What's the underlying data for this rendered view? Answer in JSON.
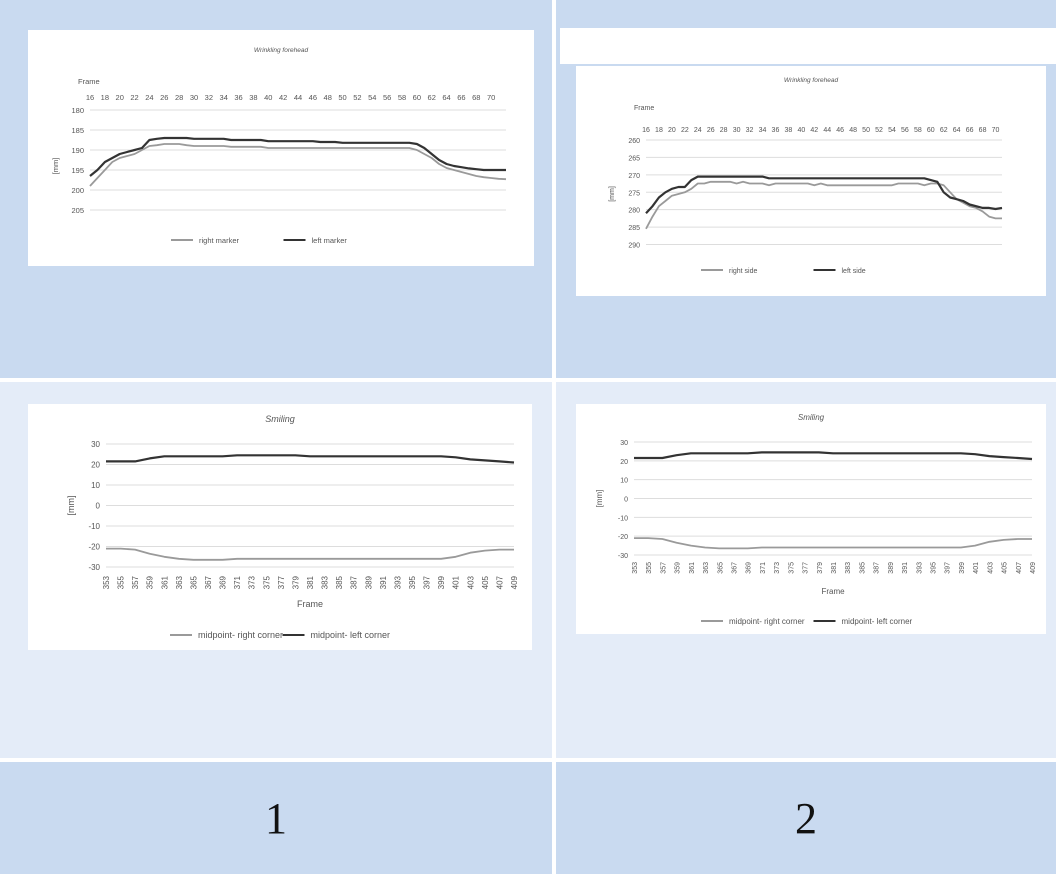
{
  "labels": {
    "left": "1",
    "right": "2"
  },
  "chart_data": [
    {
      "id": "p1",
      "type": "line",
      "title": "Wrinkling forehead",
      "xlabel": "Frame",
      "ylabel": "[mm]",
      "x_ticks": [
        "16",
        "18",
        "20",
        "22",
        "24",
        "26",
        "28",
        "30",
        "32",
        "34",
        "36",
        "38",
        "40",
        "42",
        "44",
        "46",
        "48",
        "50",
        "52",
        "54",
        "56",
        "58",
        "60",
        "62",
        "64",
        "66",
        "68",
        "70"
      ],
      "y_ticks": [
        180,
        185,
        190,
        195,
        200,
        205
      ],
      "ylim": [
        180,
        208
      ],
      "y_reversed": true,
      "x_axis_position": "top",
      "legend": "bottom",
      "series": [
        {
          "name": "right marker",
          "color": "#9a9a9a",
          "x": [
            16,
            17,
            18,
            19,
            20,
            21,
            22,
            23,
            24,
            25,
            26,
            27,
            28,
            29,
            30,
            31,
            32,
            33,
            34,
            35,
            36,
            37,
            38,
            39,
            40,
            41,
            42,
            43,
            44,
            45,
            46,
            47,
            48,
            49,
            50,
            51,
            52,
            53,
            54,
            55,
            56,
            57,
            58,
            59,
            60,
            61,
            62,
            63,
            64,
            65,
            66,
            67,
            68,
            69,
            70,
            71,
            72
          ],
          "y": [
            199,
            197,
            195,
            193,
            192,
            191.5,
            191,
            190,
            189,
            188.8,
            188.5,
            188.5,
            188.5,
            188.8,
            189,
            189,
            189,
            189,
            189,
            189.2,
            189.2,
            189.2,
            189.2,
            189.2,
            189.5,
            189.5,
            189.5,
            189.5,
            189.5,
            189.5,
            189.5,
            189.5,
            189.5,
            189.5,
            189.5,
            189.5,
            189.5,
            189.5,
            189.5,
            189.5,
            189.5,
            189.5,
            189.5,
            189.5,
            190,
            191,
            192,
            193.5,
            194.5,
            195,
            195.5,
            196,
            196.5,
            196.8,
            197,
            197.2,
            197.3
          ]
        },
        {
          "name": "left marker",
          "color": "#333333",
          "x": [
            16,
            17,
            18,
            19,
            20,
            21,
            22,
            23,
            24,
            25,
            26,
            27,
            28,
            29,
            30,
            31,
            32,
            33,
            34,
            35,
            36,
            37,
            38,
            39,
            40,
            41,
            42,
            43,
            44,
            45,
            46,
            47,
            48,
            49,
            50,
            51,
            52,
            53,
            54,
            55,
            56,
            57,
            58,
            59,
            60,
            61,
            62,
            63,
            64,
            65,
            66,
            67,
            68,
            69,
            70,
            71,
            72
          ],
          "y": [
            196.5,
            195,
            193,
            192,
            191,
            190.5,
            190,
            189.5,
            187.5,
            187.2,
            187,
            187,
            187,
            187,
            187.2,
            187.2,
            187.2,
            187.2,
            187.2,
            187.5,
            187.5,
            187.5,
            187.5,
            187.5,
            187.8,
            187.8,
            187.8,
            187.8,
            187.8,
            187.8,
            187.8,
            188,
            188,
            188,
            188.2,
            188.2,
            188.2,
            188.2,
            188.2,
            188.2,
            188.2,
            188.2,
            188.2,
            188.2,
            188.5,
            189.5,
            191,
            192.5,
            193.5,
            194,
            194.3,
            194.6,
            194.8,
            195,
            195,
            195,
            195
          ]
        }
      ]
    },
    {
      "id": "p2",
      "type": "line",
      "title": "Wrinkling forehead",
      "xlabel": "Frame",
      "ylabel": "[mm]",
      "x_ticks": [
        "16",
        "18",
        "20",
        "22",
        "24",
        "26",
        "28",
        "30",
        "32",
        "34",
        "36",
        "38",
        "40",
        "42",
        "44",
        "46",
        "48",
        "50",
        "52",
        "54",
        "56",
        "58",
        "60",
        "62",
        "64",
        "66",
        "68",
        "70"
      ],
      "y_ticks": [
        260,
        265,
        270,
        275,
        280,
        285,
        290
      ],
      "ylim": [
        260,
        291
      ],
      "y_reversed": true,
      "x_axis_position": "top",
      "legend": "bottom",
      "series": [
        {
          "name": "right side",
          "color": "#9a9a9a",
          "x": [
            16,
            17,
            18,
            19,
            20,
            21,
            22,
            23,
            24,
            25,
            26,
            27,
            28,
            29,
            30,
            31,
            32,
            33,
            34,
            35,
            36,
            37,
            38,
            39,
            40,
            41,
            42,
            43,
            44,
            45,
            46,
            47,
            48,
            49,
            50,
            51,
            52,
            53,
            54,
            55,
            56,
            57,
            58,
            59,
            60,
            61,
            62,
            63,
            64,
            65,
            66,
            67,
            68,
            69,
            70,
            71
          ],
          "y": [
            285.5,
            282,
            279,
            277.5,
            276,
            275.5,
            275,
            274,
            272.5,
            272.5,
            272,
            272,
            272,
            272,
            272.5,
            272,
            272.5,
            272.5,
            272.5,
            273,
            272.5,
            272.5,
            272.5,
            272.5,
            272.5,
            272.5,
            273,
            272.5,
            273,
            273,
            273,
            273,
            273,
            273,
            273,
            273,
            273,
            273,
            273,
            272.5,
            272.5,
            272.5,
            272.5,
            273,
            272.5,
            272.5,
            273,
            275,
            277,
            278,
            279,
            279.5,
            280.5,
            282,
            282.5,
            282.5
          ]
        },
        {
          "name": "left side",
          "color": "#333333",
          "x": [
            16,
            17,
            18,
            19,
            20,
            21,
            22,
            23,
            24,
            25,
            26,
            27,
            28,
            29,
            30,
            31,
            32,
            33,
            34,
            35,
            36,
            37,
            38,
            39,
            40,
            41,
            42,
            43,
            44,
            45,
            46,
            47,
            48,
            49,
            50,
            51,
            52,
            53,
            54,
            55,
            56,
            57,
            58,
            59,
            60,
            61,
            62,
            63,
            64,
            65,
            66,
            67,
            68,
            69,
            70,
            71
          ],
          "y": [
            281,
            279,
            276.5,
            275,
            274,
            273.5,
            273.5,
            271.5,
            270.5,
            270.5,
            270.5,
            270.5,
            270.5,
            270.5,
            270.5,
            270.5,
            270.5,
            270.5,
            270.5,
            271,
            271,
            271,
            271,
            271,
            271,
            271,
            271,
            271,
            271,
            271,
            271,
            271,
            271,
            271,
            271,
            271,
            271,
            271,
            271,
            271,
            271,
            271,
            271,
            271,
            271.5,
            272,
            275,
            276.5,
            277,
            277.5,
            278.5,
            279,
            279.5,
            279.5,
            279.8,
            279.5
          ]
        }
      ]
    },
    {
      "id": "p3",
      "type": "line",
      "title": "Smiling",
      "xlabel": "Frame",
      "ylabel": "[mm]",
      "x_ticks": [
        "353",
        "355",
        "357",
        "359",
        "361",
        "363",
        "365",
        "367",
        "369",
        "371",
        "373",
        "375",
        "377",
        "379",
        "381",
        "383",
        "385",
        "387",
        "389",
        "391",
        "393",
        "395",
        "397",
        "399",
        "401",
        "403",
        "405",
        "407",
        "409"
      ],
      "y_ticks": [
        -30,
        -20,
        -10,
        0,
        10,
        20,
        30
      ],
      "ylim": [
        -30,
        30
      ],
      "y_reversed": false,
      "x_axis_position": "bottom",
      "legend": "bottom",
      "series": [
        {
          "name": "midpoint- right corner",
          "color": "#9a9a9a",
          "x": [
            353,
            355,
            357,
            359,
            361,
            363,
            365,
            367,
            369,
            371,
            373,
            375,
            377,
            379,
            381,
            383,
            385,
            387,
            389,
            391,
            393,
            395,
            397,
            399,
            401,
            403,
            405,
            407,
            409
          ],
          "y": [
            -21,
            -21,
            -21.5,
            -23.5,
            -25,
            -26,
            -26.5,
            -26.5,
            -26.5,
            -26,
            -26,
            -26,
            -26,
            -26,
            -26,
            -26,
            -26,
            -26,
            -26,
            -26,
            -26,
            -26,
            -26,
            -26,
            -25,
            -23,
            -22,
            -21.5,
            -21.5
          ]
        },
        {
          "name": "midpoint- left corner",
          "color": "#333333",
          "x": [
            353,
            355,
            357,
            359,
            361,
            363,
            365,
            367,
            369,
            371,
            373,
            375,
            377,
            379,
            381,
            383,
            385,
            387,
            389,
            391,
            393,
            395,
            397,
            399,
            401,
            403,
            405,
            407,
            409
          ],
          "y": [
            21.5,
            21.5,
            21.5,
            23,
            24,
            24,
            24,
            24,
            24,
            24.5,
            24.5,
            24.5,
            24.5,
            24.5,
            24,
            24,
            24,
            24,
            24,
            24,
            24,
            24,
            24,
            24,
            23.5,
            22.5,
            22,
            21.5,
            21
          ]
        }
      ]
    },
    {
      "id": "p4",
      "type": "line",
      "title": "Smiling",
      "xlabel": "Frame",
      "ylabel": "[mm]",
      "x_ticks": [
        "353",
        "355",
        "357",
        "359",
        "361",
        "363",
        "365",
        "367",
        "369",
        "371",
        "373",
        "375",
        "377",
        "379",
        "381",
        "383",
        "385",
        "387",
        "389",
        "391",
        "393",
        "395",
        "397",
        "399",
        "401",
        "403",
        "405",
        "407",
        "409"
      ],
      "y_ticks": [
        -30,
        -20,
        -10,
        0,
        10,
        20,
        30
      ],
      "ylim": [
        -30,
        30
      ],
      "y_reversed": false,
      "x_axis_position": "bottom",
      "legend": "bottom",
      "series": [
        {
          "name": "midpoint- right corner",
          "color": "#9a9a9a",
          "x": [
            353,
            355,
            357,
            359,
            361,
            363,
            365,
            367,
            369,
            371,
            373,
            375,
            377,
            379,
            381,
            383,
            385,
            387,
            389,
            391,
            393,
            395,
            397,
            399,
            401,
            403,
            405,
            407,
            409
          ],
          "y": [
            -21,
            -21,
            -21.5,
            -23.5,
            -25,
            -26,
            -26.5,
            -26.5,
            -26.5,
            -26,
            -26,
            -26,
            -26,
            -26,
            -26,
            -26,
            -26,
            -26,
            -26,
            -26,
            -26,
            -26,
            -26,
            -26,
            -25,
            -23,
            -22,
            -21.5,
            -21.5
          ]
        },
        {
          "name": "midpoint- left corner",
          "color": "#333333",
          "x": [
            353,
            355,
            357,
            359,
            361,
            363,
            365,
            367,
            369,
            371,
            373,
            375,
            377,
            379,
            381,
            383,
            385,
            387,
            389,
            391,
            393,
            395,
            397,
            399,
            401,
            403,
            405,
            407,
            409
          ],
          "y": [
            21.5,
            21.5,
            21.5,
            23,
            24,
            24,
            24,
            24,
            24,
            24.5,
            24.5,
            24.5,
            24.5,
            24.5,
            24,
            24,
            24,
            24,
            24,
            24,
            24,
            24,
            24,
            24,
            23.5,
            22.5,
            22,
            21.5,
            21
          ]
        }
      ]
    }
  ]
}
